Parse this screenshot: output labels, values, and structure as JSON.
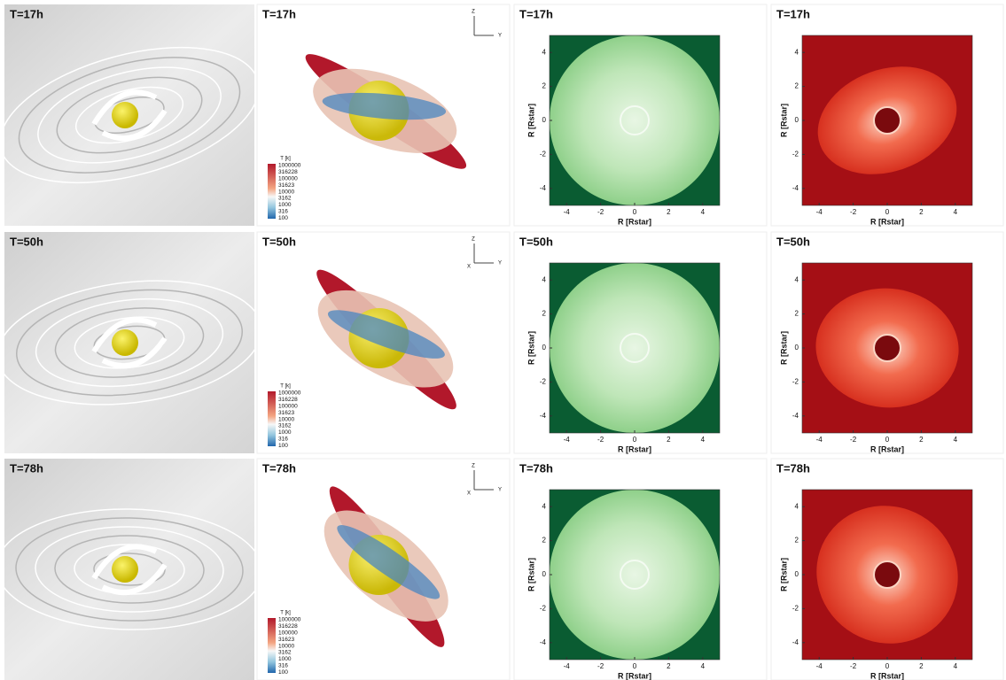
{
  "rows": [
    {
      "panels": [
        {
          "label": "T=17h"
        },
        {
          "label": "T=17h",
          "triad": [
            "Z",
            "Y"
          ],
          "colorbar": {
            "title": "T [k]",
            "ticks": [
              1000000,
              316228,
              100000,
              31623,
              10000,
              3162,
              1000,
              316,
              100
            ]
          }
        },
        {
          "label": "T=17h",
          "x_label": "R [Rstar]",
          "y_label": "R [Rstar]",
          "x_ticks": [
            -4,
            -2,
            0,
            2,
            4
          ],
          "y_ticks": [
            4,
            2,
            0,
            -2,
            -4
          ]
        },
        {
          "label": "T=17h",
          "x_label": "R [Rstar]",
          "y_label": "R [Rstar]",
          "x_ticks": [
            -4,
            -2,
            0,
            2,
            4
          ],
          "y_ticks": [
            4,
            2,
            0,
            -2,
            -4
          ]
        }
      ]
    },
    {
      "panels": [
        {
          "label": "T=50h"
        },
        {
          "label": "T=50h",
          "triad": [
            "Z",
            "Y",
            "X"
          ],
          "colorbar": {
            "title": "T [k]",
            "ticks": [
              1000000,
              316228,
              100000,
              31623,
              10000,
              3162,
              1000,
              316,
              100
            ]
          }
        },
        {
          "label": "T=50h",
          "x_label": "R [Rstar]",
          "y_label": "R [Rstar]",
          "x_ticks": [
            -4,
            -2,
            0,
            2,
            4
          ],
          "y_ticks": [
            4,
            2,
            0,
            -2,
            -4
          ]
        },
        {
          "label": "T=50h",
          "x_label": "R [Rstar]",
          "y_label": "R [Rstar]",
          "x_ticks": [
            -4,
            -2,
            0,
            2,
            4
          ],
          "y_ticks": [
            4,
            2,
            0,
            -2,
            -4
          ]
        }
      ]
    },
    {
      "panels": [
        {
          "label": "T=78h"
        },
        {
          "label": "T=78h",
          "triad": [
            "Z",
            "Y",
            "X"
          ],
          "colorbar": {
            "title": "T [k]",
            "ticks": [
              1000000,
              316228,
              100000,
              31623,
              10000,
              3162,
              1000,
              316,
              100
            ]
          }
        },
        {
          "label": "T=78h",
          "x_label": "R [Rstar]",
          "y_label": "R [Rstar]",
          "x_ticks": [
            -4,
            -2,
            0,
            2,
            4
          ],
          "y_ticks": [
            4,
            2,
            0,
            -2,
            -4
          ]
        },
        {
          "label": "T=78h",
          "x_label": "R [Rstar]",
          "y_label": "R [Rstar]",
          "x_ticks": [
            -4,
            -2,
            0,
            2,
            4
          ],
          "y_ticks": [
            4,
            2,
            0,
            -2,
            -4
          ]
        }
      ]
    }
  ]
}
